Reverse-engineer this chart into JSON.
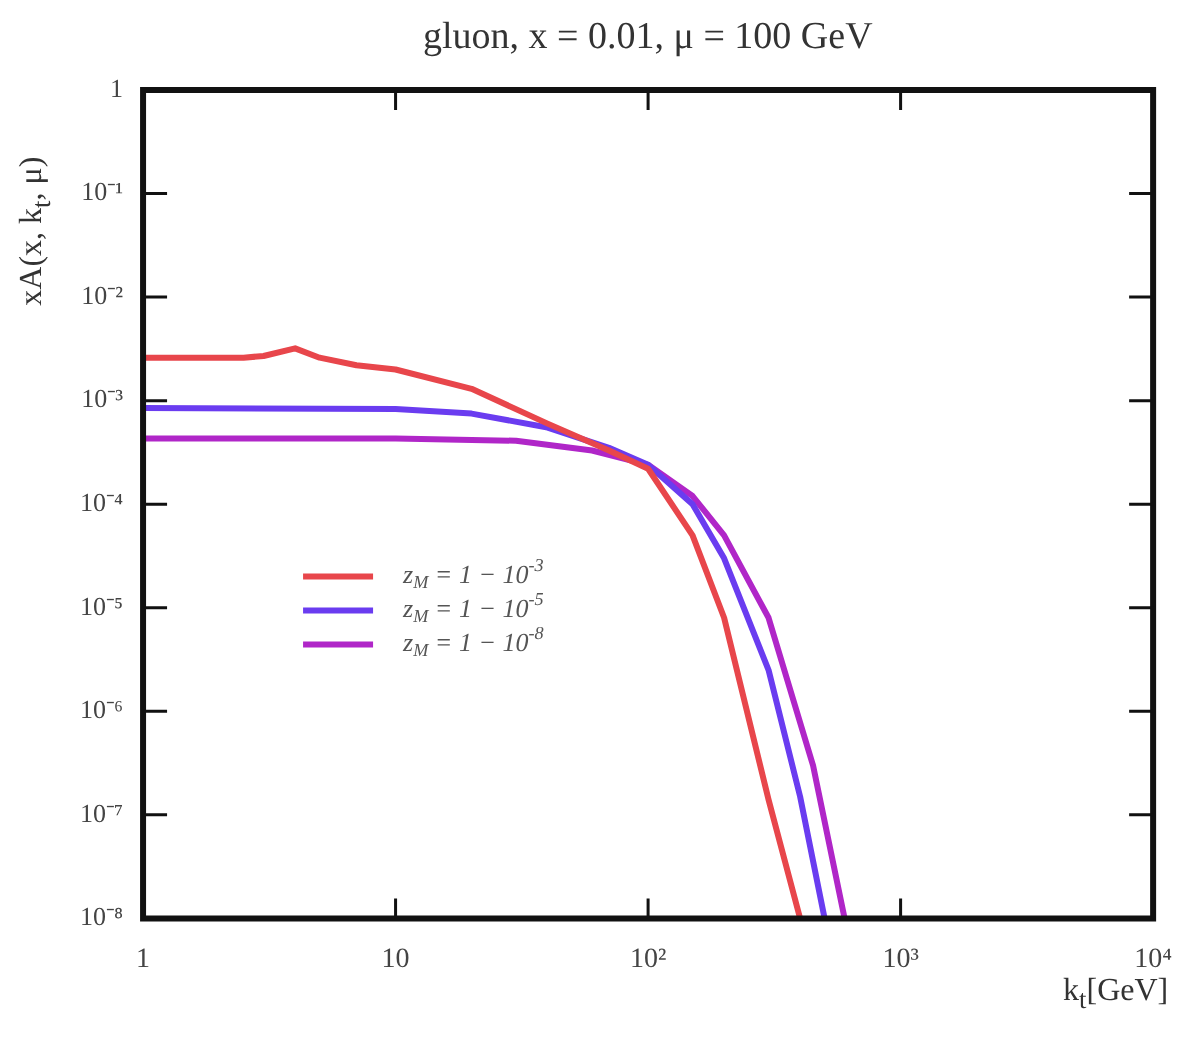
{
  "chart_data": {
    "type": "line",
    "title": "gluon, x = 0.01, μ = 100 GeV",
    "xlabel": "k$_{t}$[GeV]",
    "ylabel": "xA(x, k$_{t}$, μ)",
    "log": "xy",
    "xlim": [
      1,
      10000
    ],
    "ylim": [
      1e-08,
      1
    ],
    "xticks": [
      1,
      10,
      {
        "value": 100,
        "label": "10²"
      },
      {
        "value": 1000,
        "label": "10³"
      },
      {
        "value": 10000,
        "label": "10⁴"
      }
    ],
    "yticks": [
      {
        "value": 1e-08,
        "label": "10⁻⁸"
      },
      {
        "value": 1e-07,
        "label": "10⁻⁷"
      },
      {
        "value": 1e-06,
        "label": "10⁻⁶"
      },
      {
        "value": 1e-05,
        "label": "10⁻⁵"
      },
      {
        "value": 0.0001,
        "label": "10⁻⁴"
      },
      {
        "value": 0.001,
        "label": "10⁻³"
      },
      {
        "value": 0.01,
        "label": "10⁻²"
      },
      {
        "value": 0.1,
        "label": "10⁻¹"
      },
      1
    ],
    "grid": false,
    "marker": "none",
    "line_style": "solid",
    "legend": "bottom left",
    "series": [
      {
        "name": "z$_{M}$ = 1 − 10$^{-3}$",
        "color": "#e8464b",
        "x": [
          1,
          2.5,
          3,
          4,
          5,
          7,
          10,
          20,
          40,
          70,
          100,
          150,
          200,
          300,
          400
        ],
        "values": [
          0.0026,
          0.0026,
          0.0027,
          0.0032,
          0.0026,
          0.0022,
          0.002,
          0.0013,
          0.0006,
          0.00033,
          0.00022,
          5e-05,
          8e-06,
          1.4e-07,
          1e-08
        ]
      },
      {
        "name": "z$_{M}$ = 1 − 10$^{-5}$",
        "color": "#6a3cf0",
        "x": [
          1,
          10,
          20,
          40,
          70,
          100,
          150,
          200,
          300,
          400,
          500
        ],
        "values": [
          0.00085,
          0.00083,
          0.00075,
          0.00055,
          0.00035,
          0.00024,
          0.0001,
          3e-05,
          2.5e-06,
          1.5e-07,
          1e-08
        ]
      },
      {
        "name": "z$_{M}$ = 1 − 10$^{-8}$",
        "color": "#b026c8",
        "x": [
          1,
          10,
          30,
          60,
          100,
          150,
          200,
          300,
          450,
          600
        ],
        "values": [
          0.00043,
          0.00043,
          0.00041,
          0.00033,
          0.00024,
          0.00012,
          5e-05,
          8e-06,
          3e-07,
          1e-08
        ]
      }
    ]
  }
}
